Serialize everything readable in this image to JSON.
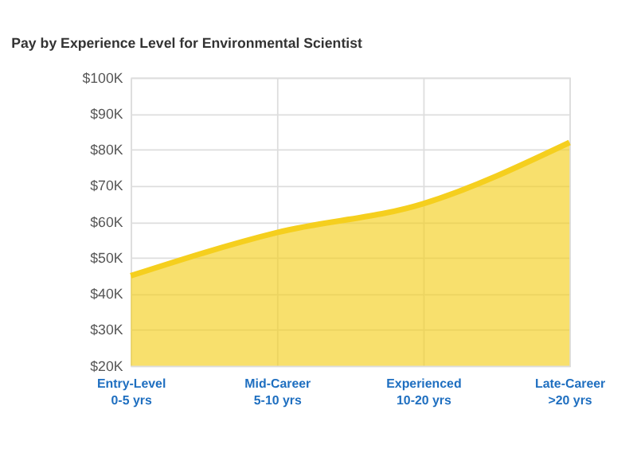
{
  "chart_data": {
    "type": "area",
    "title": "Pay by Experience Level for Environmental Scientist",
    "categories": [
      "Entry-Level\n0-5 yrs",
      "Mid-Career\n5-10 yrs",
      "Experienced\n10-20 yrs",
      "Late-Career\n>20 yrs"
    ],
    "series": [
      {
        "color": "#f5cf1e",
        "values": [
          45000,
          57000,
          65000,
          82000
        ]
      }
    ],
    "ylim": [
      20000,
      100000
    ],
    "yticks": [
      {
        "value": 20000,
        "label": "$20K"
      },
      {
        "value": 30000,
        "label": "$30K"
      },
      {
        "value": 40000,
        "label": "$40K"
      },
      {
        "value": 50000,
        "label": "$50K"
      },
      {
        "value": 60000,
        "label": "$60K"
      },
      {
        "value": 70000,
        "label": "$70K"
      },
      {
        "value": 80000,
        "label": "$80K"
      },
      {
        "value": 90000,
        "label": "$90K"
      },
      {
        "value": 100000,
        "label": "$100K"
      }
    ],
    "grid": true
  }
}
